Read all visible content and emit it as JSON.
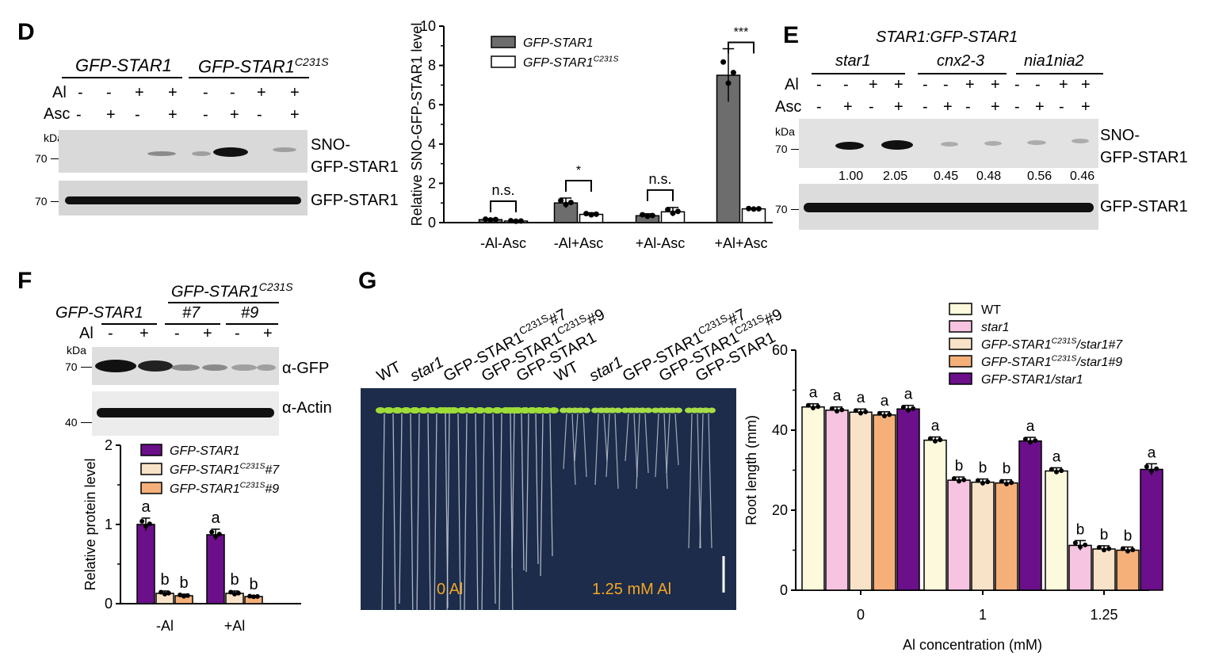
{
  "panels": {
    "D": {
      "letter": "D",
      "group1": "GFP-STAR1",
      "group2_base": "GFP-STAR1",
      "group2_sup": "C231S",
      "row_al_label": "Al",
      "row_asc_label": "Asc",
      "al_signs": [
        "-",
        "-",
        "+",
        "+",
        "-",
        "-",
        "+",
        "+"
      ],
      "asc_signs": [
        "-",
        "+",
        "-",
        "+",
        "-",
        "+",
        "-",
        "+"
      ],
      "kda": "kDa",
      "marker1": "70",
      "marker2": "70",
      "blot1_label_line1": "SNO-",
      "blot1_label_line2": "GFP-STAR1",
      "blot2_label": "GFP-STAR1"
    },
    "E": {
      "letter": "E",
      "title": "STAR1:GFP-STAR1",
      "genotypes": [
        "star1",
        "cnx2-3",
        "nia1nia2"
      ],
      "row_al_label": "Al",
      "row_asc_label": "Asc",
      "al_signs": [
        "-",
        "-",
        "+",
        "+",
        "-",
        "-",
        "+",
        "+",
        "-",
        "-",
        "+",
        "+"
      ],
      "asc_signs": [
        "-",
        "+",
        "-",
        "+",
        "-",
        "+",
        "-",
        "+",
        "-",
        "+",
        "-",
        "+"
      ],
      "kda": "kDa",
      "marker1": "70",
      "marker2": "70",
      "quant": [
        "1.00",
        "2.05",
        "0.45",
        "0.48",
        "0.56",
        "0.46"
      ],
      "blot1_label_line1": "SNO-",
      "blot1_label_line2": "GFP-STAR1",
      "blot2_label": "GFP-STAR1"
    },
    "F": {
      "letter": "F",
      "group1": "GFP-STAR1",
      "group2_base": "GFP-STAR1",
      "group2_sup": "C231S",
      "sub7": "#7",
      "sub9": "#9",
      "row_al_label": "Al",
      "al_signs": [
        "-",
        "+",
        "-",
        "+",
        "-",
        "+"
      ],
      "kda": "kDa",
      "marker1": "70",
      "marker2": "40",
      "blot1_label": "α-GFP",
      "blot2_label": "α-Actin"
    },
    "G": {
      "letter": "G",
      "photo_labels": [
        "WT",
        "star1",
        "GFP-STAR1",
        "GFP-STAR1",
        "GFP-STAR1",
        "WT",
        "star1",
        "GFP-STAR1",
        "GFP-STAR1",
        "GFP-STAR1"
      ],
      "photo_sups": [
        "",
        "",
        "C231S",
        "C231S",
        "",
        "",
        "",
        "C231S",
        "C231S",
        ""
      ],
      "photo_suffix": [
        "",
        "",
        "#7",
        "#9",
        "",
        "",
        "",
        "#7",
        "#9",
        ""
      ],
      "photo_italic": [
        false,
        true,
        false,
        false,
        false,
        false,
        true,
        false,
        false,
        false
      ],
      "cond_left": "0 Al",
      "cond_right": "1.25 mM Al"
    }
  },
  "colors": {
    "dark_gray": "#6d6d6d",
    "white": "#ffffff",
    "purple": "#6b0f8a",
    "light_peach": "#f9e3c8",
    "orange": "#f5b07a",
    "ivory": "#fdf9dc",
    "pink": "#f6c3e0",
    "label_orange": "#f5a623",
    "plate": "#1c2c4a"
  },
  "chart_data": [
    {
      "id": "D-chart",
      "type": "bar",
      "ylabel": "Relative SNO-GFP-STAR1 level",
      "ylim": [
        0,
        10
      ],
      "yticks": [
        "0",
        "2",
        "4",
        "6",
        "8",
        "10"
      ],
      "categories": [
        "-Al-Asc",
        "-Al+Asc",
        "+Al-Asc",
        "+Al+Asc"
      ],
      "series": [
        {
          "name": "GFP-STAR1",
          "values": [
            0.15,
            1.0,
            0.35,
            7.5
          ],
          "errors": [
            0.05,
            0.25,
            0.1,
            1.35
          ]
        },
        {
          "name": "GFP-STAR1 C231S",
          "values": [
            0.08,
            0.42,
            0.55,
            0.7
          ],
          "errors": [
            0.03,
            0.08,
            0.22,
            0.03
          ]
        }
      ],
      "legend": [
        {
          "base": "GFP-STAR1",
          "sup": ""
        },
        {
          "base": "GFP-STAR1",
          "sup": "C231S"
        }
      ],
      "legend_position": "top-left",
      "annotations": [
        "n.s.",
        "*",
        "n.s.",
        "***"
      ]
    },
    {
      "id": "F-chart",
      "type": "bar",
      "ylabel": "Relative protein level",
      "ylim": [
        0,
        2
      ],
      "yticks": [
        "0",
        "1",
        "2"
      ],
      "categories": [
        "-Al",
        "+Al"
      ],
      "series": [
        {
          "name": "GFP-STAR1",
          "values": [
            1.0,
            0.87
          ],
          "errors": [
            0.08,
            0.07
          ]
        },
        {
          "name": "GFP-STAR1 C231S #7",
          "values": [
            0.13,
            0.13
          ],
          "errors": [
            0.03,
            0.03
          ]
        },
        {
          "name": "GFP-STAR1 C231S #9",
          "values": [
            0.1,
            0.09
          ],
          "errors": [
            0.02,
            0.01
          ]
        }
      ],
      "legend": [
        {
          "base": "GFP-STAR1",
          "sup": "",
          "suf": ""
        },
        {
          "base": "GFP-STAR1",
          "sup": "C231S",
          "suf": "#7"
        },
        {
          "base": "GFP-STAR1",
          "sup": "C231S",
          "suf": "#9"
        }
      ],
      "legend_position": "top-right",
      "letters": [
        [
          "a",
          "b",
          "b"
        ],
        [
          "a",
          "b",
          "b"
        ]
      ]
    },
    {
      "id": "G-chart",
      "type": "bar",
      "xlabel": "Al concentration (mM)",
      "ylabel": "Root length (mm)",
      "ylim": [
        0,
        60
      ],
      "yticks": [
        "0",
        "20",
        "40",
        "60"
      ],
      "categories": [
        "0",
        "1",
        "1.25"
      ],
      "series": [
        {
          "name": "WT",
          "values": [
            45.8,
            37.5,
            29.8
          ],
          "errors": [
            0.8,
            0.8,
            0.8
          ]
        },
        {
          "name": "star1",
          "values": [
            45.0,
            27.5,
            11.2
          ],
          "errors": [
            0.8,
            0.8,
            1.2
          ]
        },
        {
          "name": "GFP-STAR1 C231S/star1#7",
          "values": [
            44.5,
            27.0,
            10.3
          ],
          "errors": [
            0.8,
            0.8,
            0.8
          ]
        },
        {
          "name": "GFP-STAR1 C231S/star1#9",
          "values": [
            43.8,
            26.8,
            10.0
          ],
          "errors": [
            0.8,
            0.8,
            0.8
          ]
        },
        {
          "name": "GFP-STAR1/star1",
          "values": [
            45.3,
            37.3,
            30.2
          ],
          "errors": [
            0.9,
            0.9,
            1.4
          ]
        }
      ],
      "legend": [
        {
          "base": "WT",
          "sup": "",
          "suf": "",
          "italic": false
        },
        {
          "base": "star1",
          "sup": "",
          "suf": "",
          "italic": true
        },
        {
          "base": "GFP-STAR1",
          "sup": "C231S",
          "suf": "/star1#7",
          "italic": true
        },
        {
          "base": "GFP-STAR1",
          "sup": "C231S",
          "suf": "/star1#9",
          "italic": true
        },
        {
          "base": "GFP-STAR1/star1",
          "sup": "",
          "suf": "",
          "italic": true
        }
      ],
      "legend_position": "top-right",
      "letters": [
        [
          "a",
          "a",
          "a",
          "a",
          "a"
        ],
        [
          "a",
          "b",
          "b",
          "b",
          "a"
        ],
        [
          "a",
          "b",
          "b",
          "b",
          "a"
        ]
      ]
    }
  ]
}
